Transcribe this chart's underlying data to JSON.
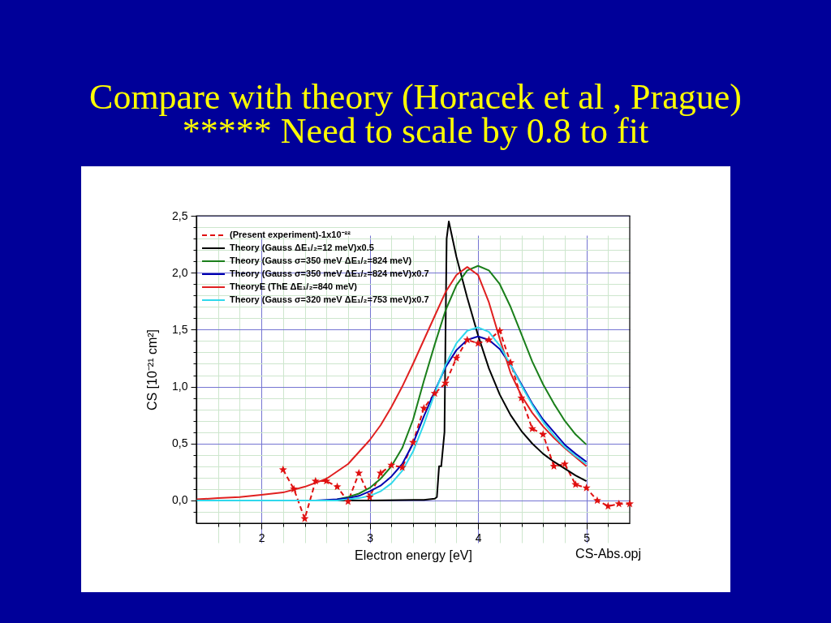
{
  "chart_data": {
    "type": "line",
    "title": "Compare with theory (Horacek et al , Prague)",
    "subtitle": "***** Need to scale by 0.8 to fit",
    "xlabel": "Electron energy [eV]",
    "ylabel": "CS [10⁻²¹ cm²]",
    "annotations": [
      "CS-Abs.opj"
    ],
    "xlim": [
      1.4,
      5.4
    ],
    "ylim": [
      -0.2,
      2.5
    ],
    "xticks": [
      {
        "value": 1.6,
        "label": null
      },
      {
        "value": 1.8,
        "label": null
      },
      2,
      {
        "value": 2.2,
        "label": null
      },
      {
        "value": 2.4,
        "label": null
      },
      {
        "value": 2.6,
        "label": null
      },
      {
        "value": 2.8,
        "label": null
      },
      3,
      {
        "value": 3.2,
        "label": null
      },
      {
        "value": 3.4,
        "label": null
      },
      {
        "value": 3.6,
        "label": null
      },
      {
        "value": 3.8,
        "label": null
      },
      4,
      {
        "value": 4.2,
        "label": null
      },
      {
        "value": 4.4,
        "label": null
      },
      {
        "value": 4.6,
        "label": null
      },
      {
        "value": 4.8,
        "label": null
      },
      5,
      {
        "value": 5.2,
        "label": null
      }
    ],
    "yticks": [
      {
        "value": -0.1,
        "label": null
      },
      {
        "value": 0,
        "label": "0,0"
      },
      {
        "value": 0.1,
        "label": null
      },
      {
        "value": 0.2,
        "label": null
      },
      {
        "value": 0.3,
        "label": null
      },
      {
        "value": 0.4,
        "label": null
      },
      {
        "value": 0.5,
        "label": "0,5"
      },
      {
        "value": 0.6,
        "label": null
      },
      {
        "value": 0.7,
        "label": null
      },
      {
        "value": 0.8,
        "label": null
      },
      {
        "value": 0.9,
        "label": null
      },
      {
        "value": 1.0,
        "label": "1,0"
      },
      {
        "value": 1.1,
        "label": null
      },
      {
        "value": 1.2,
        "label": null
      },
      {
        "value": 1.3,
        "label": null
      },
      {
        "value": 1.4,
        "label": null
      },
      {
        "value": 1.5,
        "label": "1,5"
      },
      {
        "value": 1.6,
        "label": null
      },
      {
        "value": 1.7,
        "label": null
      },
      {
        "value": 1.8,
        "label": null
      },
      {
        "value": 1.9,
        "label": null
      },
      {
        "value": 2.0,
        "label": "2,0"
      },
      {
        "value": 2.1,
        "label": null
      },
      {
        "value": 2.2,
        "label": null
      },
      {
        "value": 2.3,
        "label": null
      },
      {
        "value": 2.4,
        "label": null
      },
      {
        "value": 2.5,
        "label": "2,5"
      }
    ],
    "grid": true,
    "legend": "top left",
    "series": [
      {
        "name": "(Present experiment)-1x10⁻²²",
        "color": "#e01010",
        "marker": "star",
        "line_style": "dashed",
        "x": [
          2.2,
          2.3,
          2.4,
          2.5,
          2.6,
          2.7,
          2.8,
          2.9,
          3.0,
          3.1,
          3.2,
          3.3,
          3.4,
          3.5,
          3.6,
          3.7,
          3.8,
          3.9,
          4.0,
          4.1,
          4.2,
          4.3,
          4.4,
          4.5,
          4.6,
          4.7,
          4.8,
          4.9,
          5.0,
          5.1,
          5.2,
          5.3,
          5.4
        ],
        "values": [
          0.27,
          0.1,
          -0.16,
          0.17,
          0.17,
          0.12,
          -0.01,
          0.24,
          0.03,
          0.24,
          0.31,
          0.29,
          0.51,
          0.81,
          0.94,
          1.03,
          1.25,
          1.41,
          1.38,
          1.41,
          1.49,
          1.21,
          0.9,
          0.63,
          0.58,
          0.3,
          0.32,
          0.14,
          0.11,
          0.0,
          -0.05,
          -0.03,
          -0.03
        ]
      },
      {
        "name": "Theory (Gauss ΔE₁/₂=12 meV)x0.5",
        "color": "#000000",
        "x": [
          1.4,
          2.0,
          3.0,
          3.5,
          3.6,
          3.62,
          3.64,
          3.66,
          3.69,
          3.7,
          3.71,
          3.73,
          3.8,
          3.9,
          4.0,
          4.1,
          4.2,
          4.3,
          4.4,
          4.5,
          4.6,
          4.7,
          4.8,
          4.9,
          5.0
        ],
        "values": [
          0,
          0,
          0,
          0.005,
          0.015,
          0.03,
          0.3,
          0.3,
          0.6,
          1.5,
          2.3,
          2.45,
          2.14,
          1.78,
          1.45,
          1.16,
          0.93,
          0.75,
          0.61,
          0.5,
          0.41,
          0.34,
          0.28,
          0.22,
          0.17
        ]
      },
      {
        "name": "Theory (Gauss σ=350 meV ΔE₁/₂=824 meV)",
        "color": "#1a7f1a",
        "x": [
          2.7,
          2.8,
          2.9,
          3.0,
          3.1,
          3.2,
          3.3,
          3.4,
          3.5,
          3.6,
          3.7,
          3.8,
          3.9,
          4.0,
          4.1,
          4.2,
          4.3,
          4.4,
          4.5,
          4.6,
          4.7,
          4.8,
          4.9,
          5.0
        ],
        "values": [
          0.01,
          0.03,
          0.06,
          0.11,
          0.19,
          0.3,
          0.46,
          0.71,
          1.05,
          1.37,
          1.67,
          1.89,
          2.02,
          2.06,
          2.02,
          1.9,
          1.7,
          1.46,
          1.22,
          1.02,
          0.85,
          0.7,
          0.58,
          0.49
        ]
      },
      {
        "name": "Theory (Gauss σ=350 meV ΔE₁/₂=824 meV)x0.7",
        "color": "#0000b0",
        "x": [
          1.4,
          2.0,
          2.5,
          2.7,
          2.8,
          2.9,
          3.0,
          3.1,
          3.2,
          3.3,
          3.4,
          3.5,
          3.6,
          3.7,
          3.8,
          3.9,
          4.0,
          4.1,
          4.2,
          4.3,
          4.4,
          4.5,
          4.6,
          4.7,
          4.8,
          4.9,
          5.0
        ],
        "values": [
          0,
          0,
          0,
          0.01,
          0.02,
          0.04,
          0.08,
          0.13,
          0.21,
          0.32,
          0.5,
          0.74,
          0.96,
          1.17,
          1.32,
          1.41,
          1.44,
          1.41,
          1.33,
          1.19,
          1.02,
          0.85,
          0.71,
          0.6,
          0.49,
          0.41,
          0.34
        ]
      },
      {
        "name": "TheoryE (ThE ΔE₁/₂=840 meV)",
        "color": "#e02020",
        "x": [
          1.4,
          1.6,
          1.8,
          2.0,
          2.2,
          2.4,
          2.6,
          2.8,
          3.0,
          3.1,
          3.2,
          3.3,
          3.4,
          3.5,
          3.6,
          3.7,
          3.8,
          3.9,
          4.0,
          4.1,
          4.2,
          4.3,
          4.4,
          4.5,
          4.6,
          4.7,
          4.8,
          4.9,
          5.0
        ],
        "values": [
          0.01,
          0.02,
          0.03,
          0.05,
          0.07,
          0.12,
          0.19,
          0.32,
          0.53,
          0.66,
          0.82,
          1.0,
          1.2,
          1.41,
          1.62,
          1.83,
          1.98,
          2.05,
          1.98,
          1.74,
          1.42,
          1.12,
          0.92,
          0.77,
          0.65,
          0.55,
          0.46,
          0.38,
          0.3
        ]
      },
      {
        "name": "Theory (Gauss σ=320 meV ΔE₁/₂=753 meV)x0.7",
        "color": "#30d8ec",
        "x": [
          1.4,
          2.0,
          2.5,
          2.7,
          2.8,
          2.9,
          3.0,
          3.1,
          3.2,
          3.3,
          3.4,
          3.5,
          3.6,
          3.7,
          3.8,
          3.9,
          4.0,
          4.1,
          4.2,
          4.3,
          4.4,
          4.5,
          4.6,
          4.7,
          4.8,
          4.9,
          5.0
        ],
        "values": [
          0,
          0,
          0,
          0,
          0.01,
          0.02,
          0.04,
          0.08,
          0.15,
          0.26,
          0.43,
          0.67,
          0.94,
          1.19,
          1.38,
          1.49,
          1.52,
          1.48,
          1.36,
          1.19,
          1.01,
          0.84,
          0.69,
          0.57,
          0.47,
          0.39,
          0.32
        ]
      }
    ]
  }
}
